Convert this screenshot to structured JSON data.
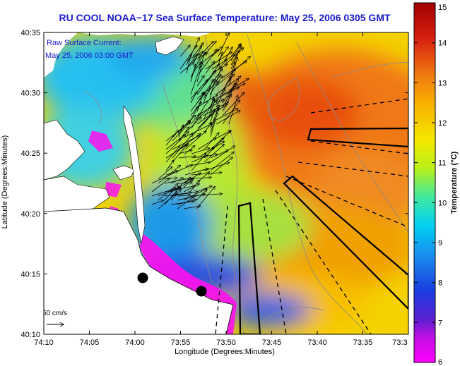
{
  "title": "RU COOL  NOAA−17  Sea Surface Temperature:  May 25, 2006 0305 GMT",
  "current_legend": {
    "line1": "Raw Surface Current:",
    "line2": "May 25, 2006 03:00 GMT"
  },
  "scale_label": "50 cm/s",
  "axes": {
    "xlabel": "Longitude (Degrees:Minutes)",
    "ylabel": "Latitude (Degrees:Minutes)",
    "x_ticks": [
      "74:10",
      "74:05",
      "74:00",
      "73:55",
      "73:50",
      "73:45",
      "73:40",
      "73:35",
      "73:3"
    ],
    "y_ticks": [
      "40:35",
      "40:30",
      "40:25",
      "40:20",
      "40:15",
      "40:10"
    ]
  },
  "colorbar": {
    "label": "Temperature (°C)",
    "ticks": [
      "15",
      "14",
      "13",
      "12",
      "11",
      "10",
      "9",
      "8",
      "7",
      "6"
    ],
    "min": 6,
    "max": 15,
    "colors": [
      "#ff00ff",
      "#7b1fd6",
      "#1f1fd8",
      "#1b6ff0",
      "#00c8f0",
      "#2fe6b0",
      "#b8f018",
      "#f8e000",
      "#f8a000",
      "#f06010",
      "#d81010",
      "#a80000"
    ]
  }
}
